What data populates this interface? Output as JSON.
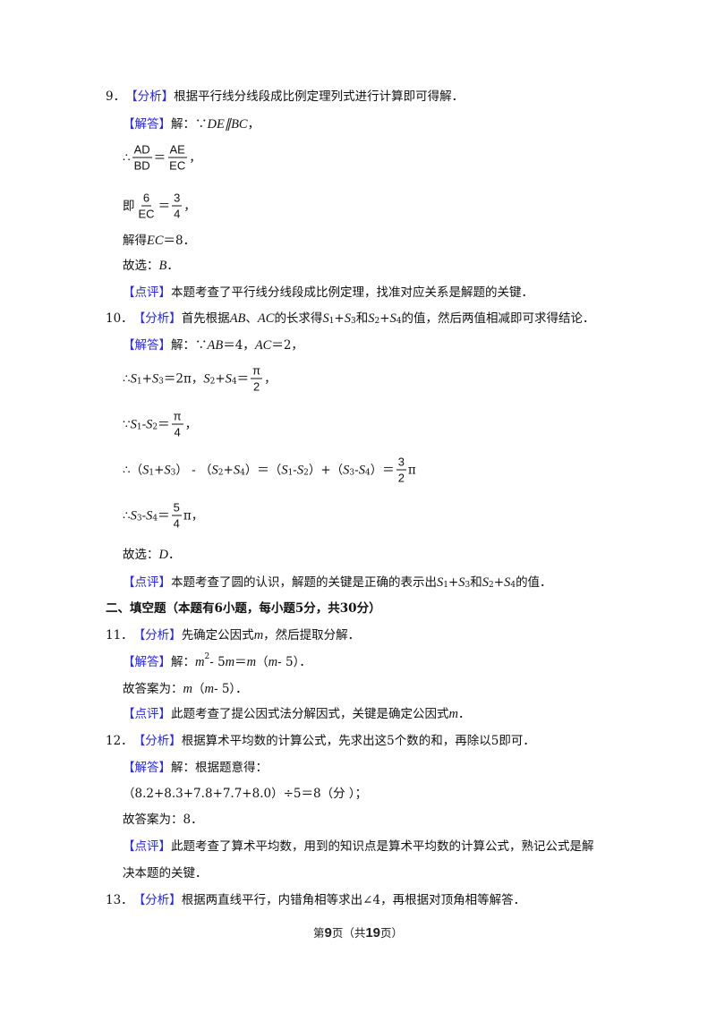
{
  "lines": [
    [
      {
        "k": "n",
        "t": "9．"
      },
      {
        "k": "b",
        "t": "【分析】"
      },
      {
        "k": "n",
        "t": "根据平行线分线段成比例定理列式进行计算即可得解．"
      }
    ],
    [
      {
        "k": "b",
        "t": "【解答】"
      },
      {
        "k": "n",
        "t": "解：∵"
      },
      {
        "k": "i",
        "t": "DE∥BC"
      },
      {
        "k": "n",
        "t": "，"
      }
    ],
    [
      {
        "k": "n",
        "t": "∴"
      },
      {
        "k": "f",
        "num": "AD",
        "den": "BD"
      },
      {
        "k": "n",
        "t": "＝"
      },
      {
        "k": "f",
        "num": "AE",
        "den": "EC"
      },
      {
        "k": "n",
        "t": "，"
      }
    ],
    [
      {
        "k": "n",
        "t": "即"
      },
      {
        "k": "f",
        "num": "6",
        "den": "EC"
      },
      {
        "k": "n",
        "t": "＝"
      },
      {
        "k": "f",
        "num": "3",
        "den": "4"
      },
      {
        "k": "n",
        "t": "，"
      }
    ],
    [
      {
        "k": "n",
        "t": "解得"
      },
      {
        "k": "i",
        "t": "EC"
      },
      {
        "k": "n",
        "t": "＝8．"
      }
    ],
    [
      {
        "k": "n",
        "t": "故选："
      },
      {
        "k": "i",
        "t": "B"
      },
      {
        "k": "n",
        "t": "．"
      }
    ],
    [
      {
        "k": "b",
        "t": "【点评】"
      },
      {
        "k": "n",
        "t": "本题考查了平行线分线段成比例定理，找准对应关系是解题的关键．"
      }
    ],
    [
      {
        "k": "n",
        "t": "10．"
      },
      {
        "k": "b",
        "t": "【分析】"
      },
      {
        "k": "n",
        "t": "首先根据"
      },
      {
        "k": "i",
        "t": "AB"
      },
      {
        "k": "n",
        "t": "、"
      },
      {
        "k": "i",
        "t": "AC"
      },
      {
        "k": "n",
        "t": "的长求得"
      },
      {
        "k": "i",
        "t": "S"
      },
      {
        "k": "sub",
        "t": "1"
      },
      {
        "k": "n",
        "t": "+"
      },
      {
        "k": "i",
        "t": "S"
      },
      {
        "k": "sub",
        "t": "3"
      },
      {
        "k": "n",
        "t": "和"
      },
      {
        "k": "i",
        "t": "S"
      },
      {
        "k": "sub",
        "t": "2"
      },
      {
        "k": "n",
        "t": "+"
      },
      {
        "k": "i",
        "t": "S"
      },
      {
        "k": "sub",
        "t": "4"
      },
      {
        "k": "n",
        "t": "的值，然后两值相减即可求得结论．"
      }
    ],
    [
      {
        "k": "b",
        "t": "【解答】"
      },
      {
        "k": "n",
        "t": "解：∵"
      },
      {
        "k": "i",
        "t": "AB"
      },
      {
        "k": "n",
        "t": "＝4，"
      },
      {
        "k": "i",
        "t": "AC"
      },
      {
        "k": "n",
        "t": "＝2，"
      }
    ],
    [
      {
        "k": "n",
        "t": "∴"
      },
      {
        "k": "i",
        "t": "S"
      },
      {
        "k": "sub",
        "t": "1"
      },
      {
        "k": "n",
        "t": "+"
      },
      {
        "k": "i",
        "t": "S"
      },
      {
        "k": "sub",
        "t": "3"
      },
      {
        "k": "n",
        "t": "＝2π，"
      },
      {
        "k": "i",
        "t": "S"
      },
      {
        "k": "sub",
        "t": "2"
      },
      {
        "k": "n",
        "t": "+"
      },
      {
        "k": "i",
        "t": "S"
      },
      {
        "k": "sub",
        "t": "4"
      },
      {
        "k": "n",
        "t": "＝"
      },
      {
        "k": "f",
        "num": "π",
        "den": "2"
      },
      {
        "k": "n",
        "t": "，"
      }
    ],
    [
      {
        "k": "n",
        "t": "∵"
      },
      {
        "k": "i",
        "t": "S"
      },
      {
        "k": "sub",
        "t": "1"
      },
      {
        "k": "n",
        "t": " - "
      },
      {
        "k": "i",
        "t": "S"
      },
      {
        "k": "sub",
        "t": "2"
      },
      {
        "k": "n",
        "t": "＝"
      },
      {
        "k": "f",
        "num": "π",
        "den": "4"
      },
      {
        "k": "n",
        "t": "，"
      }
    ],
    [
      {
        "k": "n",
        "t": "∴（"
      },
      {
        "k": "i",
        "t": "S"
      },
      {
        "k": "sub",
        "t": "1"
      },
      {
        "k": "n",
        "t": "+"
      },
      {
        "k": "i",
        "t": "S"
      },
      {
        "k": "sub",
        "t": "3"
      },
      {
        "k": "n",
        "t": "） - （"
      },
      {
        "k": "i",
        "t": "S"
      },
      {
        "k": "sub",
        "t": "2"
      },
      {
        "k": "n",
        "t": "+"
      },
      {
        "k": "i",
        "t": "S"
      },
      {
        "k": "sub",
        "t": "4"
      },
      {
        "k": "n",
        "t": "）＝（"
      },
      {
        "k": "i",
        "t": "S"
      },
      {
        "k": "sub",
        "t": "1"
      },
      {
        "k": "n",
        "t": " - "
      },
      {
        "k": "i",
        "t": "S"
      },
      {
        "k": "sub",
        "t": "2"
      },
      {
        "k": "n",
        "t": "）+（"
      },
      {
        "k": "i",
        "t": "S"
      },
      {
        "k": "sub",
        "t": "3"
      },
      {
        "k": "n",
        "t": " - "
      },
      {
        "k": "i",
        "t": "S"
      },
      {
        "k": "sub",
        "t": "4"
      },
      {
        "k": "n",
        "t": "）＝"
      },
      {
        "k": "f",
        "num": "3",
        "den": "2"
      },
      {
        "k": "n",
        "t": "π"
      }
    ],
    [
      {
        "k": "n",
        "t": "∴"
      },
      {
        "k": "i",
        "t": "S"
      },
      {
        "k": "sub",
        "t": "3"
      },
      {
        "k": "n",
        "t": " - "
      },
      {
        "k": "i",
        "t": "S"
      },
      {
        "k": "sub",
        "t": "4"
      },
      {
        "k": "n",
        "t": "＝"
      },
      {
        "k": "f",
        "num": "5",
        "den": "4"
      },
      {
        "k": "n",
        "t": "π，"
      }
    ],
    [
      {
        "k": "n",
        "t": "故选："
      },
      {
        "k": "i",
        "t": "D"
      },
      {
        "k": "n",
        "t": "．"
      }
    ],
    [
      {
        "k": "b",
        "t": "【点评】"
      },
      {
        "k": "n",
        "t": "本题考查了圆的认识，解题的关键是正确的表示出"
      },
      {
        "k": "i",
        "t": "S"
      },
      {
        "k": "sub",
        "t": "1"
      },
      {
        "k": "n",
        "t": "+"
      },
      {
        "k": "i",
        "t": "S"
      },
      {
        "k": "sub",
        "t": "3"
      },
      {
        "k": "n",
        "t": "和"
      },
      {
        "k": "i",
        "t": "S"
      },
      {
        "k": "sub",
        "t": "2"
      },
      {
        "k": "n",
        "t": "+"
      },
      {
        "k": "i",
        "t": "S"
      },
      {
        "k": "sub",
        "t": "4"
      },
      {
        "k": "n",
        "t": "的值．"
      }
    ],
    [
      {
        "k": "bold",
        "t": "二、填空题（本题有6小题，每小题5分，共30分）"
      }
    ],
    [
      {
        "k": "n",
        "t": "11．"
      },
      {
        "k": "b",
        "t": "【分析】"
      },
      {
        "k": "n",
        "t": "先确定公因式"
      },
      {
        "k": "i",
        "t": "m"
      },
      {
        "k": "n",
        "t": "，然后提取分解．"
      }
    ],
    [
      {
        "k": "b",
        "t": "【解答】"
      },
      {
        "k": "n",
        "t": "解："
      },
      {
        "k": "i",
        "t": "m"
      },
      {
        "k": "sup",
        "t": "2"
      },
      {
        "k": "n",
        "t": " - 5"
      },
      {
        "k": "i",
        "t": "m"
      },
      {
        "k": "n",
        "t": "＝"
      },
      {
        "k": "i",
        "t": "m"
      },
      {
        "k": "n",
        "t": "（"
      },
      {
        "k": "i",
        "t": "m"
      },
      {
        "k": "n",
        "t": " - 5）．"
      }
    ],
    [
      {
        "k": "n",
        "t": "故答案为："
      },
      {
        "k": "i",
        "t": "m"
      },
      {
        "k": "n",
        "t": "（"
      },
      {
        "k": "i",
        "t": "m"
      },
      {
        "k": "n",
        "t": " - 5）．"
      }
    ],
    [
      {
        "k": "b",
        "t": "【点评】"
      },
      {
        "k": "n",
        "t": "此题考查了提公因式法分解因式，关键是确定公因式"
      },
      {
        "k": "i",
        "t": "m"
      },
      {
        "k": "n",
        "t": "．"
      }
    ],
    [
      {
        "k": "n",
        "t": "12．"
      },
      {
        "k": "b",
        "t": "【分析】"
      },
      {
        "k": "n",
        "t": "根据算术平均数的计算公式，先求出这5个数的和，再除以5即可．"
      }
    ],
    [
      {
        "k": "b",
        "t": "【解答】"
      },
      {
        "k": "n",
        "t": "解：根据题意得："
      }
    ],
    [
      {
        "k": "n",
        "t": "（8.2+8.3+7.8+7.7+8.0）÷5＝8（分 ）；"
      }
    ],
    [
      {
        "k": "n",
        "t": "故答案为：8．"
      }
    ],
    [
      {
        "k": "b",
        "t": "【点评】"
      },
      {
        "k": "n",
        "t": "此题考查了算术平均数，用到的知识点是算术平均数的计算公式，熟记公式是解"
      }
    ],
    [
      {
        "k": "n",
        "t": "决本题的关键．"
      }
    ],
    [
      {
        "k": "n",
        "t": "13．"
      },
      {
        "k": "b",
        "t": "【分析】"
      },
      {
        "k": "n",
        "t": "根据两直线平行，内错角相等求出∠4，再根据对顶角相等解答．"
      }
    ]
  ],
  "footer": {
    "prefix": "第",
    "page": "9",
    "middle": "页（共",
    "total": "19",
    "suffix": "页）"
  },
  "colors": {
    "tag": "#2a2ae0",
    "text": "#111111"
  }
}
